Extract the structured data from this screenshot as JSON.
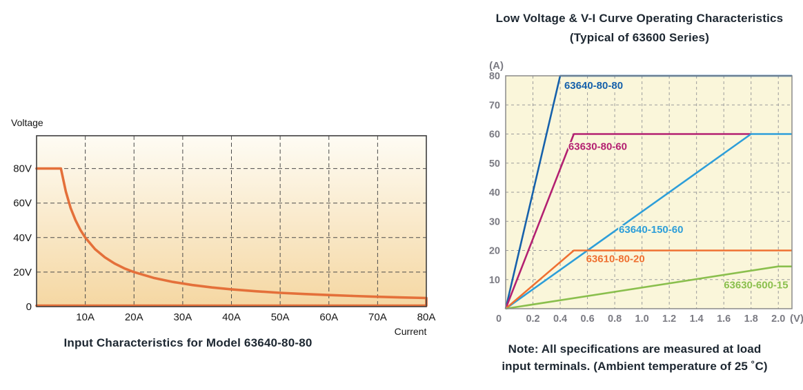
{
  "ui": {
    "left_ylabel": "Voltage",
    "left_xlabel": "Current",
    "left_caption": "Input Characteristics for Model 63640-80-80",
    "right_title_line1": "Low Voltage & V-I Curve Operating Characteristics",
    "right_title_line2": "(Typical of 63600 Series)",
    "note_line1": "Note: All specifications are measured at load",
    "note_line2": "input terminals. (Ambient temperature of 25 ˚C)"
  },
  "colors": {
    "left_curve": "#e4703a",
    "left_plot_border": "#3d3d3d",
    "left_grid": "#4a4a4a",
    "left_bg_top": "#fefcf4",
    "left_bg_bottom": "#f5d7a2",
    "left_tick_text": "#161616",
    "right_bg": "#faf6da",
    "right_border": "#8a8a8a",
    "right_grid": "#9b9b9b",
    "right_tick_text": "#7b7b83"
  },
  "chart_data": [
    {
      "id": "input-characteristics",
      "type": "line",
      "title": "Input Characteristics for Model 63640-80-80",
      "xlabel": "Current",
      "ylabel": "Voltage",
      "xlim": [
        0,
        80
      ],
      "ylim": [
        0,
        99
      ],
      "grid": true,
      "x_tick_values": [
        10,
        20,
        30,
        40,
        50,
        60,
        70,
        80
      ],
      "x_tick_labels": [
        "10A",
        "20A",
        "30A",
        "40A",
        "50A",
        "60A",
        "70A",
        "80A"
      ],
      "y_tick_values": [
        0,
        20,
        40,
        60,
        80
      ],
      "y_tick_labels": [
        "0",
        "20V",
        "40V",
        "60V",
        "80V"
      ],
      "series": [
        {
          "name": "operating-boundary-63640-80-80",
          "color": "#e4703a",
          "points": [
            [
              0,
              80
            ],
            [
              5,
              80
            ],
            [
              6,
              66.7
            ],
            [
              7,
              57.1
            ],
            [
              8,
              50
            ],
            [
              9,
              44.4
            ],
            [
              10,
              40
            ],
            [
              12,
              33.3
            ],
            [
              14,
              28.6
            ],
            [
              16,
              25
            ],
            [
              18,
              22.2
            ],
            [
              20,
              20
            ],
            [
              24,
              16.7
            ],
            [
              28,
              14.3
            ],
            [
              32,
              12.5
            ],
            [
              36,
              11.1
            ],
            [
              40,
              10
            ],
            [
              45,
              8.9
            ],
            [
              50,
              8
            ],
            [
              55,
              7.3
            ],
            [
              60,
              6.7
            ],
            [
              65,
              6.2
            ],
            [
              70,
              5.7
            ],
            [
              75,
              5.3
            ],
            [
              80,
              5
            ],
            [
              80,
              0.6
            ],
            [
              0,
              0.6
            ]
          ]
        }
      ]
    },
    {
      "id": "low-voltage-vi-curves",
      "type": "line",
      "title": "Low Voltage & V-I Curve Operating Characteristics (Typical of 63600 Series)",
      "xlabel": "(V)",
      "ylabel": "(A)",
      "xlim": [
        0,
        2.1
      ],
      "ylim": [
        0,
        80
      ],
      "grid": true,
      "x_tick_values": [
        0,
        0.2,
        0.4,
        0.6,
        0.8,
        1.0,
        1.2,
        1.4,
        1.6,
        1.8,
        2.0
      ],
      "x_tick_labels": [
        "0",
        "0.2",
        "0.4",
        "0.6",
        "0.8",
        "1.0",
        "1.2",
        "1.4",
        "1.6",
        "1.8",
        "2.0"
      ],
      "y_tick_values": [
        10,
        20,
        30,
        40,
        50,
        60,
        70,
        80
      ],
      "y_tick_labels": [
        "10",
        "20",
        "30",
        "40",
        "50",
        "60",
        "70",
        "80"
      ],
      "legend_position": "inline-labels",
      "series": [
        {
          "name": "63640-80-80",
          "color": "#1661ab",
          "points": [
            [
              0,
              0
            ],
            [
              0.4,
              80
            ],
            [
              2.1,
              80
            ]
          ],
          "label_pos": [
            0.43,
            75.5
          ]
        },
        {
          "name": "63630-80-60",
          "color": "#b32071",
          "points": [
            [
              0,
              0
            ],
            [
              0.5,
              60
            ],
            [
              1.8,
              60
            ]
          ],
          "label_pos": [
            0.46,
            54.5
          ]
        },
        {
          "name": "63640-150-60",
          "color": "#2d9ed9",
          "points": [
            [
              0,
              0
            ],
            [
              1.8,
              60
            ],
            [
              2.1,
              60
            ]
          ],
          "label_pos": [
            0.83,
            26
          ]
        },
        {
          "name": "63610-80-20",
          "color": "#ef7031",
          "points": [
            [
              0,
              0
            ],
            [
              0.5,
              20
            ],
            [
              2.1,
              20
            ]
          ],
          "label_pos": [
            0.59,
            16
          ]
        },
        {
          "name": "63630-600-15",
          "color": "#8abf4d",
          "points": [
            [
              0,
              0
            ],
            [
              2.0,
              14.5
            ],
            [
              2.1,
              14.5
            ]
          ],
          "label_pos": [
            1.6,
            7
          ]
        }
      ]
    }
  ]
}
